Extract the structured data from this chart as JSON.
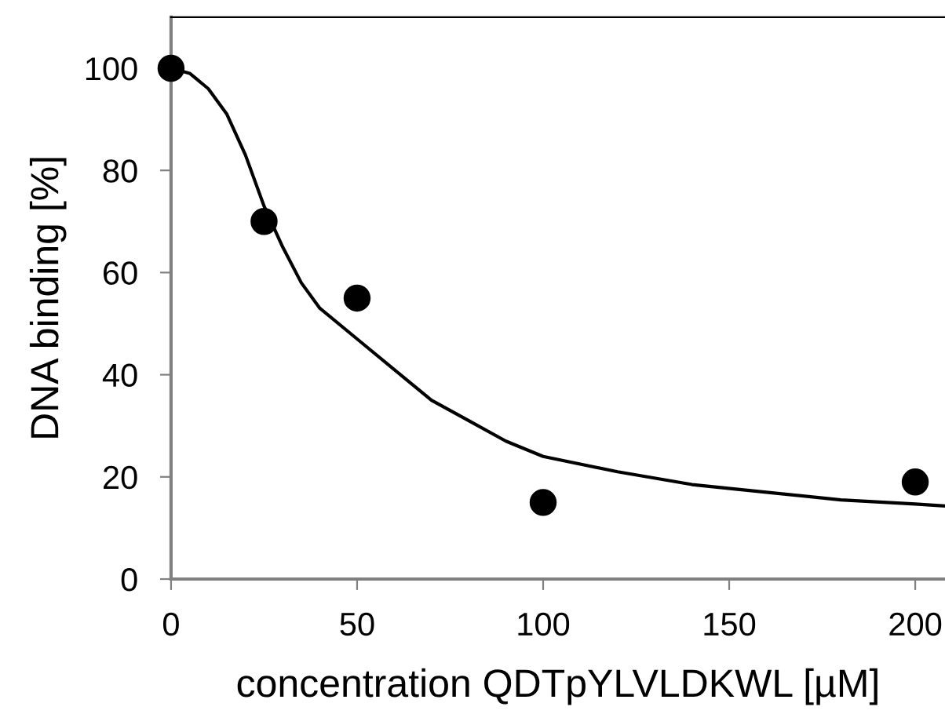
{
  "chart_data": {
    "type": "scatter",
    "xlabel": "concentration QDTpYLVLDKWL [µM]",
    "ylabel": "DNA binding [%]",
    "xlim": [
      0,
      208
    ],
    "ylim": [
      0,
      110
    ],
    "xticks": [
      0,
      50,
      100,
      150,
      200
    ],
    "yticks": [
      0,
      20,
      40,
      60,
      80,
      100
    ],
    "grid": false,
    "legend": false,
    "series": [
      {
        "marker": "circle",
        "color": "#000000",
        "x": [
          0,
          25,
          50,
          100,
          200
        ],
        "values": [
          100,
          70,
          55,
          15,
          19
        ]
      },
      {
        "type": "line",
        "marker": "none",
        "color": "#000000",
        "line_style": "solid",
        "x": [
          0,
          5,
          10,
          15,
          20,
          25,
          30,
          35,
          40,
          50,
          60,
          70,
          80,
          90,
          100,
          120,
          140,
          160,
          180,
          200,
          208
        ],
        "values": [
          100,
          99,
          96,
          91,
          83,
          73,
          65,
          58,
          53,
          47,
          41,
          35,
          31,
          27,
          24,
          21,
          18.5,
          17,
          15.5,
          14.7,
          14.3
        ]
      }
    ]
  }
}
